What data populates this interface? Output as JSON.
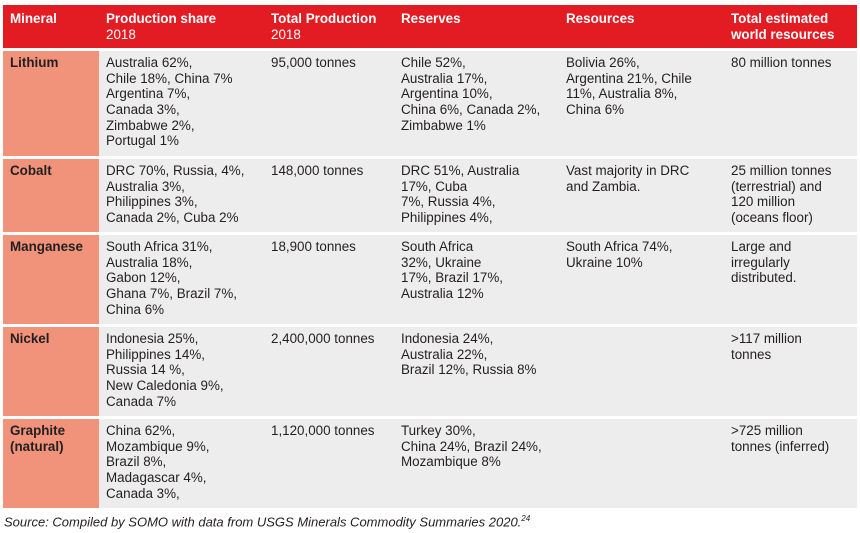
{
  "headers": [
    {
      "title": "Mineral",
      "sub": ""
    },
    {
      "title": "Production share",
      "sub": "2018"
    },
    {
      "title": "Total Production",
      "sub": "2018"
    },
    {
      "title": "Reserves",
      "sub": ""
    },
    {
      "title": "Resources",
      "sub": ""
    },
    {
      "title": "Total estimated",
      "sub": "world resources"
    }
  ],
  "rows": [
    {
      "mineral": [
        "Lithium"
      ],
      "production_share": [
        "Australia 62%,",
        "Chile 18%, China 7%",
        "Argentina 7%,",
        "Canada 3%,",
        "Zimbabwe 2%,",
        "Portugal 1%"
      ],
      "total_production": [
        "95,000 tonnes"
      ],
      "reserves": [
        "Chile 52%,",
        "Australia 17%,",
        "Argentina 10%,",
        "China 6%, Canada 2%,",
        "Zimbabwe 1%"
      ],
      "resources": [
        "Bolivia 26%,",
        "Argentina 21%, Chile",
        "11%, Australia 8%,",
        "China 6%"
      ],
      "world_resources": [
        "80 million tonnes"
      ]
    },
    {
      "mineral": [
        "Cobalt"
      ],
      "production_share": [
        "DRC 70%, Russia, 4%,",
        "Australia 3%,",
        "Philippines 3%,",
        "Canada 2%, Cuba 2%"
      ],
      "total_production": [
        "148,000 tonnes"
      ],
      "reserves": [
        "DRC 51%, Australia",
        "17%, Cuba",
        "7%, Russia 4%,",
        "Philippines 4%,"
      ],
      "resources": [
        "Vast majority in DRC",
        "and Zambia."
      ],
      "world_resources": [
        "25 million tonnes",
        "(terrestrial) and",
        "120 million",
        "(oceans floor)"
      ]
    },
    {
      "mineral": [
        "Manganese"
      ],
      "production_share": [
        "South Africa 31%,",
        "Australia 18%,",
        "Gabon 12%,",
        "Ghana 7%, Brazil 7%,",
        "China 6%"
      ],
      "total_production": [
        "18,900 tonnes"
      ],
      "reserves": [
        "South Africa",
        "32%, Ukraine",
        "17%, Brazil 17%,",
        "Australia 12%"
      ],
      "resources": [
        "South Africa 74%,",
        "Ukraine 10%"
      ],
      "world_resources": [
        "Large and",
        "irregularly",
        "distributed."
      ]
    },
    {
      "mineral": [
        "Nickel"
      ],
      "production_share": [
        "Indonesia 25%,",
        "Philippines 14%,",
        "Russia 14 %,",
        "New Caledonia 9%,",
        "Canada 7%"
      ],
      "total_production": [
        "2,400,000 tonnes"
      ],
      "reserves": [
        "Indonesia 24%,",
        "Australia 22%,",
        "Brazil 12%, Russia 8%"
      ],
      "resources": [],
      "world_resources": [
        ">117 million",
        "tonnes"
      ]
    },
    {
      "mineral": [
        "Graphite",
        "(natural)"
      ],
      "production_share": [
        "China 62%,",
        "Mozambique 9%,",
        "Brazil 8%,",
        "Madagascar 4%,",
        "Canada 3%,"
      ],
      "total_production": [
        "1,120,000 tonnes"
      ],
      "reserves": [
        "Turkey 30%,",
        "China 24%, Brazil 24%,",
        "Mozambique 8%"
      ],
      "resources": [],
      "world_resources": [
        ">725 million",
        "tonnes (inferred)"
      ]
    }
  ],
  "source": {
    "text": "Source: Compiled by SOMO with data from USGS Minerals Commodity Summaries 2020.",
    "footnote": "24"
  }
}
